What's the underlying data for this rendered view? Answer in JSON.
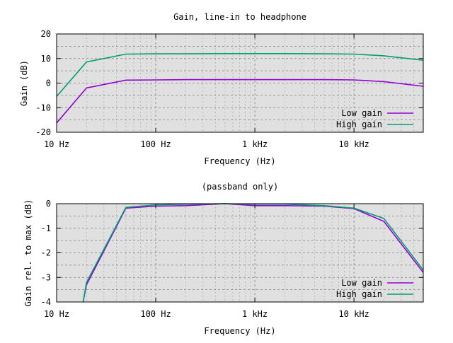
{
  "chart_data": [
    {
      "type": "line",
      "title": "Gain, line-in to headphone",
      "xlabel": "Frequency (Hz)",
      "ylabel": "Gain (dB)",
      "xscale": "log",
      "xlim": [
        10,
        50000
      ],
      "ylim": [
        -20,
        20
      ],
      "xticks": [
        10,
        100,
        1000,
        10000
      ],
      "xtick_labels": [
        "10 Hz",
        "100 Hz",
        "1 kHz",
        "10 kHz"
      ],
      "yticks": [
        -20,
        -10,
        0,
        10,
        20
      ],
      "ytick_labels": [
        "-20",
        "-10",
        "0",
        "10",
        "20"
      ],
      "grid": true,
      "legend_position": "bottom-right",
      "series": [
        {
          "name": "Low gain",
          "color": "#9400d3",
          "x": [
            10,
            20,
            50,
            100,
            200,
            500,
            1000,
            2000,
            5000,
            10000,
            20000,
            50000
          ],
          "y": [
            -16.2,
            -2.0,
            1.2,
            1.3,
            1.4,
            1.4,
            1.4,
            1.4,
            1.4,
            1.3,
            0.6,
            -1.3
          ]
        },
        {
          "name": "High gain",
          "color": "#009e73",
          "x": [
            10,
            20,
            50,
            100,
            200,
            500,
            1000,
            2000,
            5000,
            10000,
            20000,
            50000
          ],
          "y": [
            -5.4,
            8.6,
            11.8,
            11.9,
            11.9,
            12.0,
            12.0,
            12.0,
            11.9,
            11.8,
            11.1,
            9.3
          ]
        }
      ]
    },
    {
      "type": "line",
      "title": "(passband only)",
      "xlabel": "Frequency (Hz)",
      "ylabel": "Gain rel. to max (dB)",
      "xscale": "log",
      "xlim": [
        10,
        50000
      ],
      "ylim": [
        -4,
        0
      ],
      "xticks": [
        10,
        100,
        1000,
        10000
      ],
      "xtick_labels": [
        "10 Hz",
        "100 Hz",
        "1 kHz",
        "10 kHz"
      ],
      "yticks": [
        -4,
        -3,
        -2,
        -1,
        0
      ],
      "ytick_labels": [
        "-4",
        "-3",
        "-2",
        "-1",
        "0"
      ],
      "grid": true,
      "legend_position": "bottom-right",
      "series": [
        {
          "name": "Low gain",
          "color": "#9400d3",
          "x": [
            18.5,
            20,
            50,
            100,
            200,
            500,
            1000,
            2000,
            5000,
            10000,
            20000,
            50000
          ],
          "y": [
            -4.0,
            -3.3,
            -0.18,
            -0.1,
            -0.08,
            0.0,
            -0.08,
            -0.08,
            -0.1,
            -0.2,
            -0.72,
            -2.8
          ]
        },
        {
          "name": "High gain",
          "color": "#009e73",
          "x": [
            18.5,
            20,
            50,
            100,
            200,
            500,
            1000,
            2000,
            5000,
            10000,
            20000,
            50000
          ],
          "y": [
            -4.0,
            -3.2,
            -0.15,
            -0.05,
            -0.02,
            0.0,
            -0.02,
            -0.02,
            -0.08,
            -0.18,
            -0.6,
            -2.7
          ]
        }
      ]
    }
  ]
}
